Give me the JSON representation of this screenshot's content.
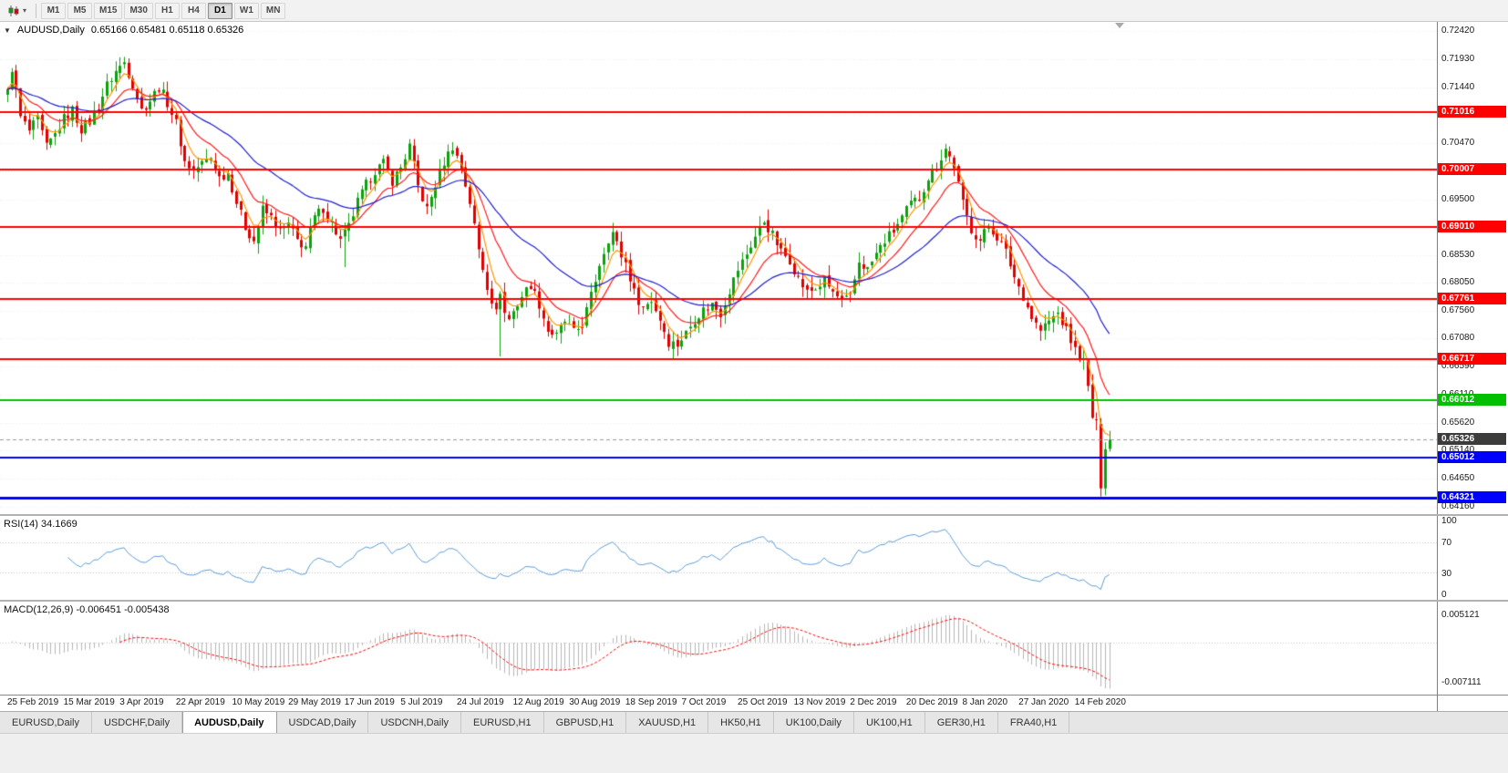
{
  "toolbar": {
    "timeframes": [
      "M1",
      "M5",
      "M15",
      "M30",
      "H1",
      "H4",
      "D1",
      "W1",
      "MN"
    ],
    "active_timeframe": "D1"
  },
  "chart": {
    "title_symbol": "AUDUSD,Daily",
    "title_ohlc": "0.65166 0.65481 0.65118 0.65326"
  },
  "rsi_panel": {
    "label": "RSI(14) 34.1669",
    "axis": [
      "100",
      "70",
      "30",
      "0"
    ]
  },
  "macd_panel": {
    "label": "MACD(12,26,9) -0.006451 -0.005438",
    "axis_top": "0.005121",
    "axis_bottom": "-0.007111"
  },
  "tabs": {
    "items": [
      "EURUSD,Daily",
      "USDCHF,Daily",
      "AUDUSD,Daily",
      "USDCAD,Daily",
      "USDCNH,Daily",
      "EURUSD,H1",
      "GBPUSD,H1",
      "XAUUSD,H1",
      "HK50,H1",
      "UK100,Daily",
      "UK100,H1",
      "GER30,H1",
      "FRA40,H1"
    ],
    "active": "AUDUSD,Daily"
  },
  "colors": {
    "up": "#0da10d",
    "down": "#e00000",
    "grid": "#ececec",
    "current_badge": "#3c3c3c"
  },
  "chart_data": {
    "type": "candlestick",
    "symbol": "AUDUSD",
    "period": "Daily",
    "current_ohlc": {
      "open": 0.65166,
      "high": 0.65481,
      "low": 0.65118,
      "close": 0.65326
    },
    "y_range": [
      0.6416,
      0.7242
    ],
    "price_ticks": [
      "0.72420",
      "0.71930",
      "0.71440",
      "0.70960",
      "0.70470",
      "0.69980",
      "0.69500",
      "0.69010",
      "0.68530",
      "0.68050",
      "0.67560",
      "0.67080",
      "0.66590",
      "0.66110",
      "0.65620",
      "0.65140",
      "0.64650",
      "0.64160"
    ],
    "date_labels": [
      "25 Feb 2019",
      "15 Mar 2019",
      "3 Apr 2019",
      "22 Apr 2019",
      "10 May 2019",
      "29 May 2019",
      "17 Jun 2019",
      "5 Jul 2019",
      "24 Jul 2019",
      "12 Aug 2019",
      "30 Aug 2019",
      "18 Sep 2019",
      "7 Oct 2019",
      "25 Oct 2019",
      "13 Nov 2019",
      "2 Dec 2019",
      "20 Dec 2019",
      "8 Jan 2020",
      "27 Jan 2020",
      "14 Feb 2020"
    ],
    "bars_per_label": 13,
    "close_anchors": [
      [
        0,
        0.7135
      ],
      [
        1,
        0.7178
      ],
      [
        3,
        0.7092
      ],
      [
        5,
        0.7068
      ],
      [
        7,
        0.7088
      ],
      [
        9,
        0.704
      ],
      [
        11,
        0.7062
      ],
      [
        13,
        0.709
      ],
      [
        15,
        0.7105
      ],
      [
        17,
        0.7072
      ],
      [
        19,
        0.7085
      ],
      [
        21,
        0.7112
      ],
      [
        23,
        0.7148
      ],
      [
        25,
        0.7172
      ],
      [
        27,
        0.7188
      ],
      [
        29,
        0.715
      ],
      [
        31,
        0.7105
      ],
      [
        33,
        0.7122
      ],
      [
        35,
        0.7145
      ],
      [
        37,
        0.7118
      ],
      [
        39,
        0.7082
      ],
      [
        41,
        0.7015
      ],
      [
        43,
        0.7
      ],
      [
        45,
        0.7012
      ],
      [
        47,
        0.7022
      ],
      [
        49,
        0.6988
      ],
      [
        51,
        0.6996
      ],
      [
        53,
        0.6945
      ],
      [
        55,
        0.6902
      ],
      [
        57,
        0.6878
      ],
      [
        59,
        0.6932
      ],
      [
        61,
        0.6918
      ],
      [
        63,
        0.6895
      ],
      [
        65,
        0.6906
      ],
      [
        67,
        0.6878
      ],
      [
        69,
        0.6868
      ],
      [
        71,
        0.6918
      ],
      [
        73,
        0.6935
      ],
      [
        75,
        0.6908
      ],
      [
        77,
        0.6878
      ],
      [
        79,
        0.6902
      ],
      [
        81,
        0.6945
      ],
      [
        83,
        0.6975
      ],
      [
        85,
        0.7
      ],
      [
        87,
        0.7012
      ],
      [
        89,
        0.6982
      ],
      [
        91,
        0.7005
      ],
      [
        93,
        0.7042
      ],
      [
        95,
        0.6972
      ],
      [
        97,
        0.6932
      ],
      [
        99,
        0.6975
      ],
      [
        101,
        0.7015
      ],
      [
        103,
        0.7042
      ],
      [
        105,
        0.7005
      ],
      [
        107,
        0.6945
      ],
      [
        109,
        0.6862
      ],
      [
        111,
        0.68
      ],
      [
        113,
        0.6752
      ],
      [
        114,
        0.6792
      ],
      [
        115,
        0.6752
      ],
      [
        116,
        0.6742
      ],
      [
        117,
        0.6755
      ],
      [
        119,
        0.6782
      ],
      [
        121,
        0.6802
      ],
      [
        123,
        0.6768
      ],
      [
        125,
        0.6722
      ],
      [
        127,
        0.6712
      ],
      [
        129,
        0.6738
      ],
      [
        131,
        0.6718
      ],
      [
        133,
        0.6732
      ],
      [
        135,
        0.6782
      ],
      [
        137,
        0.6838
      ],
      [
        139,
        0.6882
      ],
      [
        140,
        0.6892
      ],
      [
        142,
        0.6852
      ],
      [
        143,
        0.684
      ],
      [
        145,
        0.6788
      ],
      [
        147,
        0.6762
      ],
      [
        149,
        0.6775
      ],
      [
        151,
        0.6742
      ],
      [
        153,
        0.6702
      ],
      [
        155,
        0.6698
      ],
      [
        157,
        0.6718
      ],
      [
        159,
        0.6742
      ],
      [
        161,
        0.6758
      ],
      [
        163,
        0.6768
      ],
      [
        165,
        0.6752
      ],
      [
        167,
        0.6792
      ],
      [
        169,
        0.6828
      ],
      [
        171,
        0.6855
      ],
      [
        173,
        0.6885
      ],
      [
        175,
        0.6912
      ],
      [
        177,
        0.6888
      ],
      [
        179,
        0.6858
      ],
      [
        181,
        0.6845
      ],
      [
        183,
        0.6812
      ],
      [
        185,
        0.6788
      ],
      [
        187,
        0.6795
      ],
      [
        189,
        0.6808
      ],
      [
        191,
        0.6788
      ],
      [
        193,
        0.6772
      ],
      [
        195,
        0.6778
      ],
      [
        197,
        0.6842
      ],
      [
        199,
        0.6828
      ],
      [
        201,
        0.6855
      ],
      [
        203,
        0.6878
      ],
      [
        205,
        0.6895
      ],
      [
        207,
        0.6918
      ],
      [
        209,
        0.6942
      ],
      [
        211,
        0.6952
      ],
      [
        213,
        0.6988
      ],
      [
        215,
        0.7008
      ],
      [
        217,
        0.7038
      ],
      [
        219,
        0.7008
      ],
      [
        221,
        0.6942
      ],
      [
        223,
        0.6898
      ],
      [
        225,
        0.6878
      ],
      [
        227,
        0.6905
      ],
      [
        229,
        0.6885
      ],
      [
        231,
        0.6858
      ],
      [
        233,
        0.6815
      ],
      [
        235,
        0.6782
      ],
      [
        237,
        0.6745
      ],
      [
        239,
        0.6722
      ],
      [
        241,
        0.6738
      ],
      [
        243,
        0.6752
      ],
      [
        245,
        0.6722
      ],
      [
        247,
        0.6688
      ],
      [
        249,
        0.6668
      ],
      [
        250,
        0.6622
      ],
      [
        251,
        0.6572
      ],
      [
        252,
        0.6558
      ],
      [
        253,
        0.6448
      ],
      [
        254,
        0.6516
      ],
      [
        255,
        0.65326
      ]
    ],
    "spike_highs": [
      [
        27,
        0.7197
      ],
      [
        217,
        0.7046
      ]
    ],
    "spike_lows": [
      [
        78,
        0.6832
      ],
      [
        114,
        0.6677
      ],
      [
        154,
        0.6671
      ]
    ],
    "last_candles": [
      [
        0.656,
        0.657,
        0.6434,
        0.6448
      ],
      [
        0.6448,
        0.6528,
        0.6436,
        0.6516
      ],
      [
        0.65166,
        0.65481,
        0.65118,
        0.65326
      ]
    ],
    "moving_averages": [
      {
        "period": 5,
        "color": "#ff9500"
      },
      {
        "period": 13,
        "color": "#ff1a1a"
      },
      {
        "period": 34,
        "color": "#2020cc"
      }
    ],
    "levels": [
      {
        "price": 0.71016,
        "label": "0.71016",
        "color": "#ff0000",
        "width": 2
      },
      {
        "price": 0.70007,
        "label": "0.70007",
        "color": "#ff0000",
        "width": 2
      },
      {
        "price": 0.6901,
        "label": "0.69010",
        "color": "#ff0000",
        "width": 2
      },
      {
        "price": 0.67761,
        "label": "0.67761",
        "color": "#ff0000",
        "width": 2
      },
      {
        "price": 0.66717,
        "label": "0.66717",
        "color": "#ff0000",
        "width": 2
      },
      {
        "price": 0.66012,
        "label": "0.66012",
        "color": "#00c000",
        "width": 2
      },
      {
        "price": 0.65012,
        "label": "0.65012",
        "color": "#0000ff",
        "width": 2
      },
      {
        "price": 0.64321,
        "label": "0.64321",
        "color": "#0000ff",
        "width": 3
      }
    ],
    "current_price": {
      "value": 0.65326,
      "label": "0.65326"
    },
    "indicators": {
      "rsi": {
        "period": 14,
        "value": 34.1669,
        "levels": [
          70,
          30
        ],
        "color": "#5b9bd5"
      },
      "macd": {
        "fast": 12,
        "slow": 26,
        "signal": 9,
        "value": -0.006451,
        "signal_value": -0.005438,
        "hist_color": "#b6b6b6",
        "signal_color": "#ff0000",
        "plot_range": [
          -0.0086,
          0.0066
        ]
      }
    }
  }
}
